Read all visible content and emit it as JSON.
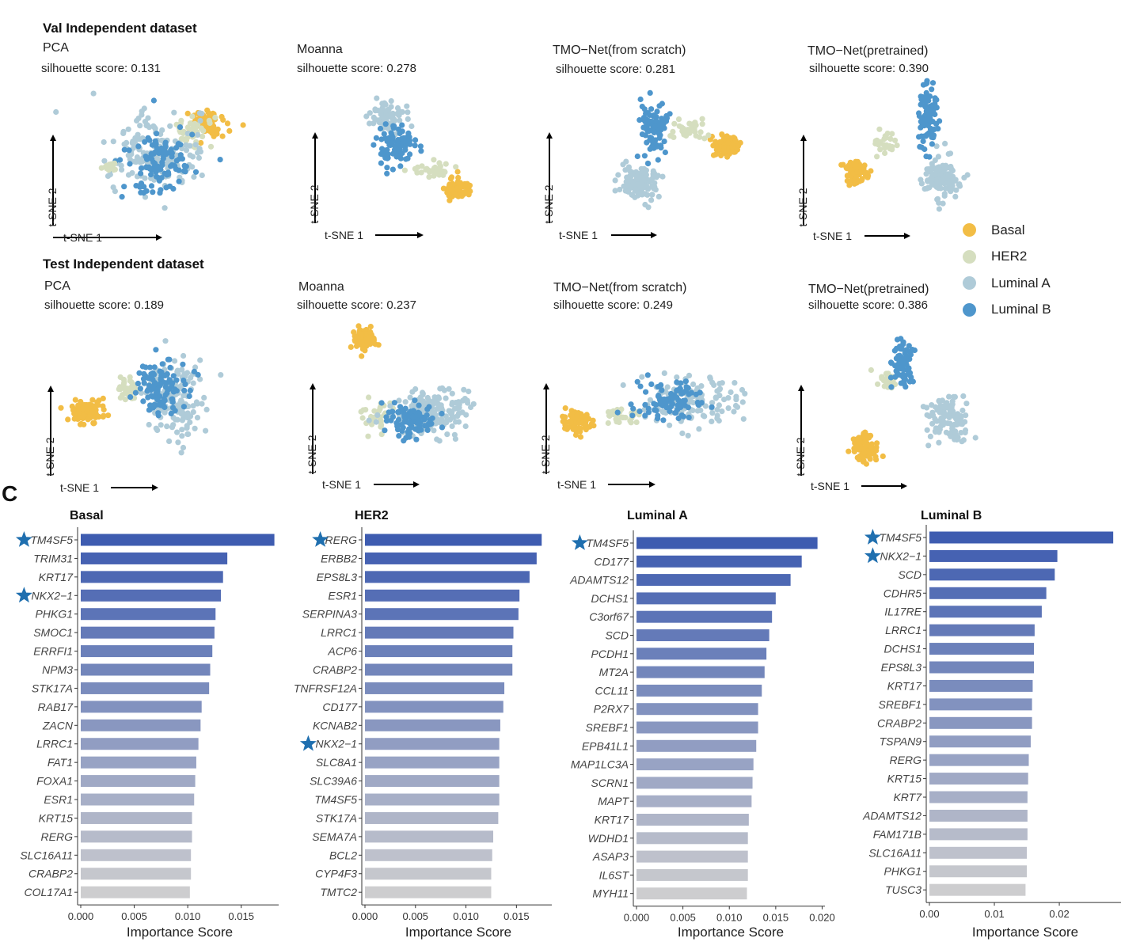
{
  "panel_a": {
    "rows": [
      {
        "title": "Val Independent dataset",
        "plots": [
          {
            "method": "PCA",
            "silhouette": "silhouette score: 0.131",
            "xlabel": "t-SNE 1",
            "ylabel": "t-SNE 2"
          },
          {
            "method": "Moanna",
            "silhouette": "silhouette score: 0.278",
            "xlabel": "t-SNE 1",
            "ylabel": "t-SNE 2"
          },
          {
            "method": "TMO−Net(from scratch)",
            "silhouette": "silhouette score: 0.281",
            "xlabel": "t-SNE 1",
            "ylabel": "t-SNE 2"
          },
          {
            "method": "TMO−Net(pretrained)",
            "silhouette": "silhouette score: 0.390",
            "xlabel": "t-SNE 1",
            "ylabel": "t-SNE 2"
          }
        ]
      },
      {
        "title": "Test Independent dataset",
        "plots": [
          {
            "method": "PCA",
            "silhouette": "silhouette score: 0.189",
            "xlabel": "t-SNE 1",
            "ylabel": "t-SNE 2"
          },
          {
            "method": "Moanna",
            "silhouette": "silhouette score: 0.237",
            "xlabel": "t-SNE 1",
            "ylabel": "t-SNE 2"
          },
          {
            "method": "TMO−Net(from scratch)",
            "silhouette": "silhouette score: 0.249",
            "xlabel": "t-SNE 1",
            "ylabel": "t-SNE 2"
          },
          {
            "method": "TMO−Net(pretrained)",
            "silhouette": "silhouette score: 0.386",
            "xlabel": "t-SNE 1",
            "ylabel": "t-SNE 2"
          }
        ]
      }
    ],
    "legend": [
      {
        "label": "Basal",
        "color": "#F2BD45"
      },
      {
        "label": "HER2",
        "color": "#D5DEBF"
      },
      {
        "label": "Luminal A",
        "color": "#AFCBD8"
      },
      {
        "label": "Luminal B",
        "color": "#4E96CC"
      }
    ]
  },
  "panel_c_label": "C",
  "chart_data": [
    {
      "type": "bar",
      "orientation": "horizontal",
      "title": "Basal",
      "xlabel": "Importance Score",
      "xlim": [
        0,
        0.0185
      ],
      "ticks": [
        0,
        0.005,
        0.01,
        0.015
      ],
      "tick_labels": [
        "0.000",
        "0.005",
        "0.010",
        "0.015"
      ],
      "categories": [
        "TM4SF5",
        "TRIM31",
        "KRT17",
        "NKX2−1",
        "PHKG1",
        "SMOC1",
        "ERRFI1",
        "NPM3",
        "STK17A",
        "RAB17",
        "ZACN",
        "LRRC1",
        "FAT1",
        "FOXA1",
        "ESR1",
        "KRT15",
        "RERG",
        "SLC16A11",
        "CRABP2",
        "COL17A1"
      ],
      "values": [
        0.0181,
        0.0137,
        0.0133,
        0.0131,
        0.0126,
        0.0125,
        0.0123,
        0.0121,
        0.012,
        0.0113,
        0.0112,
        0.011,
        0.0108,
        0.0107,
        0.0106,
        0.0104,
        0.0104,
        0.0103,
        0.0103,
        0.0102
      ],
      "starred": [
        "TM4SF5",
        "NKX2−1"
      ]
    },
    {
      "type": "bar",
      "orientation": "horizontal",
      "title": "HER2",
      "xlabel": "Importance Score",
      "xlim": [
        0,
        0.0185
      ],
      "ticks": [
        0,
        0.005,
        0.01,
        0.015
      ],
      "tick_labels": [
        "0.000",
        "0.005",
        "0.010",
        "0.015"
      ],
      "categories": [
        "RERG",
        "ERBB2",
        "EPS8L3",
        "ESR1",
        "SERPINA3",
        "LRRC1",
        "ACP6",
        "CRABP2",
        "TNFRSF12A",
        "CD177",
        "KCNAB2",
        "NKX2−1",
        "SLC8A1",
        "SLC39A6",
        "TM4SF5",
        "STK17A",
        "SEMA7A",
        "BCL2",
        "CYP4F3",
        "TMTC2"
      ],
      "values": [
        0.0175,
        0.017,
        0.0163,
        0.0153,
        0.0152,
        0.0147,
        0.0146,
        0.0146,
        0.0138,
        0.0137,
        0.0134,
        0.0133,
        0.0133,
        0.0133,
        0.0133,
        0.0132,
        0.0127,
        0.0126,
        0.0125,
        0.0125
      ],
      "starred": [
        "RERG",
        "NKX2−1"
      ]
    },
    {
      "type": "bar",
      "orientation": "horizontal",
      "title": "Luminal A",
      "xlabel": "Importance Score",
      "xlim": [
        0,
        0.0203
      ],
      "ticks": [
        0,
        0.005,
        0.01,
        0.015,
        0.02
      ],
      "tick_labels": [
        "0.000",
        "0.005",
        "0.010",
        "0.015",
        "0.020"
      ],
      "categories": [
        "TM4SF5",
        "CD177",
        "ADAMTS12",
        "DCHS1",
        "C3orf67",
        "SCD",
        "PCDH1",
        "MT2A",
        "CCL11",
        "P2RX7",
        "SREBF1",
        "EPB41L1",
        "MAP1LC3A",
        "SCRN1",
        "MAPT",
        "KRT17",
        "WDHD1",
        "ASAP3",
        "IL6ST",
        "MYH11"
      ],
      "values": [
        0.0195,
        0.0178,
        0.0166,
        0.015,
        0.0146,
        0.0143,
        0.014,
        0.0138,
        0.0135,
        0.0131,
        0.0131,
        0.0129,
        0.0126,
        0.0125,
        0.0124,
        0.0121,
        0.012,
        0.012,
        0.012,
        0.0119
      ],
      "starred": [
        "TM4SF5"
      ]
    },
    {
      "type": "bar",
      "orientation": "horizontal",
      "title": "Luminal B",
      "xlabel": "Importance Score",
      "xlim": [
        0,
        0.0295
      ],
      "ticks": [
        0,
        0.01,
        0.02
      ],
      "tick_labels": [
        "0.00",
        "0.01",
        "0.02"
      ],
      "categories": [
        "TM4SF5",
        "NKX2−1",
        "SCD",
        "CDHR5",
        "IL17RE",
        "LRRC1",
        "DCHS1",
        "EPS8L3",
        "KRT17",
        "SREBF1",
        "CRABP2",
        "TSPAN9",
        "RERG",
        "KRT15",
        "KRT7",
        "ADAMTS12",
        "FAM171B",
        "SLC16A11",
        "PHKG1",
        "TUSC3"
      ],
      "values": [
        0.0283,
        0.0197,
        0.0193,
        0.018,
        0.0173,
        0.0162,
        0.0161,
        0.0161,
        0.0159,
        0.0158,
        0.0158,
        0.0156,
        0.0153,
        0.0152,
        0.0151,
        0.0151,
        0.0151,
        0.015,
        0.015,
        0.0148
      ],
      "starred": [
        "TM4SF5",
        "NKX2−1"
      ]
    }
  ]
}
